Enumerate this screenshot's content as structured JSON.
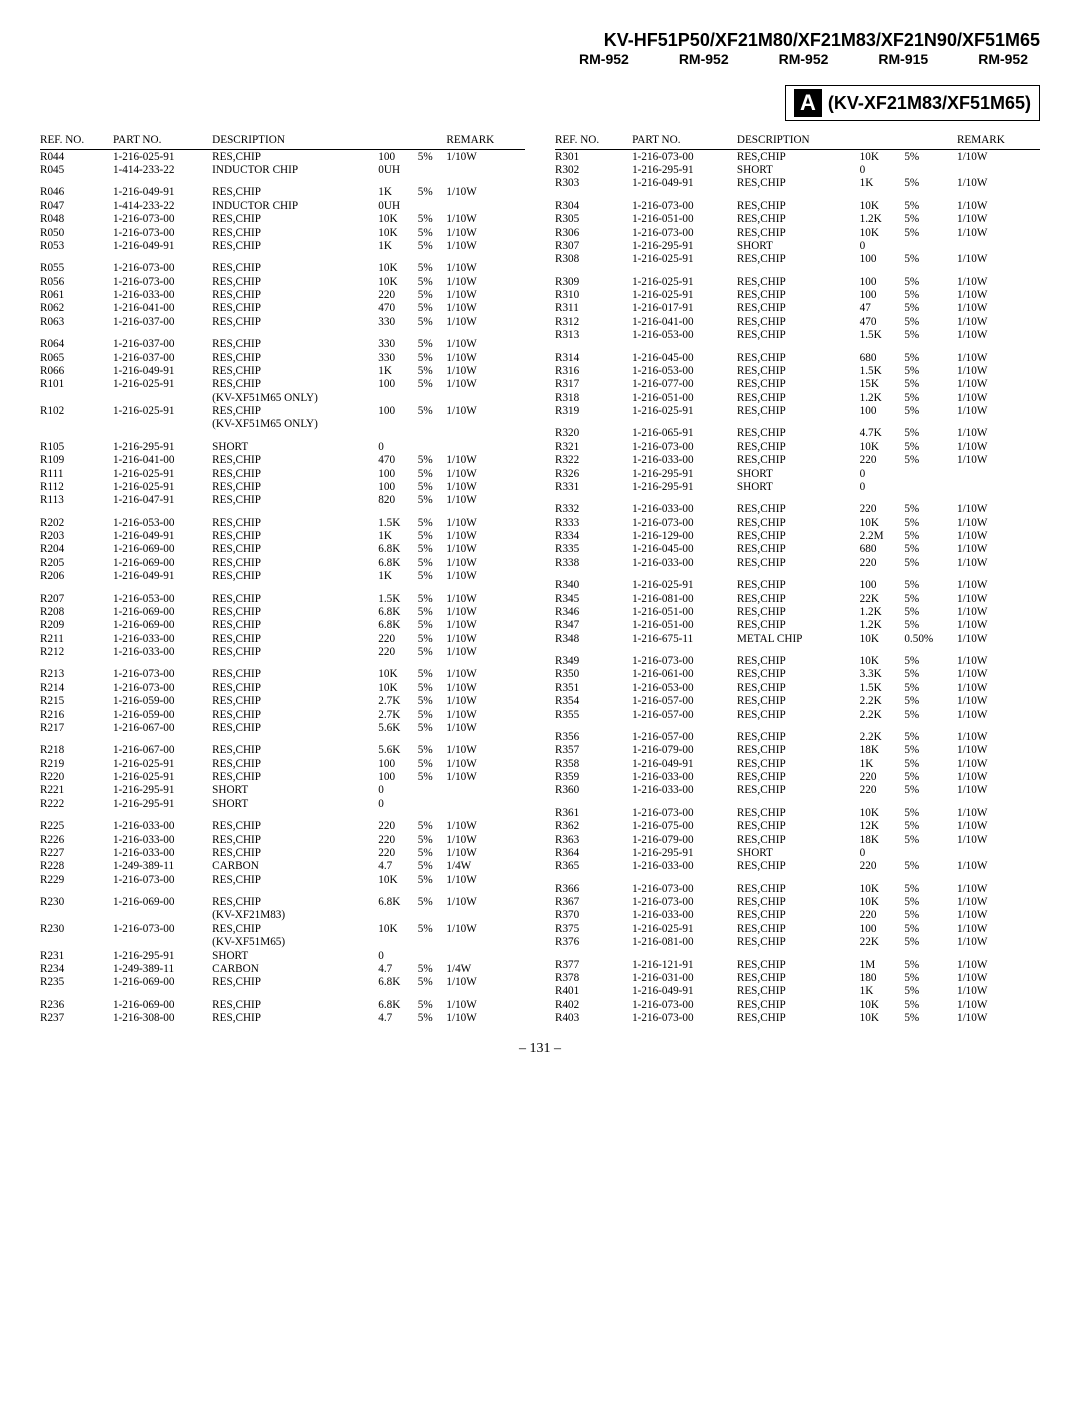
{
  "header": {
    "title": "KV-HF51P50/XF21M80/XF21M83/XF21N90/XF51M65",
    "rm_labels": [
      "RM-952",
      "RM-952",
      "RM-952",
      "RM-915",
      "RM-952"
    ]
  },
  "badge": {
    "letter": "A",
    "models": "(KV-XF21M83/XF51M65)"
  },
  "columns_header": [
    "REF. NO.",
    "PART NO.",
    "DESCRIPTION",
    "",
    "",
    "REMARK"
  ],
  "page_number": "– 131 –",
  "left": [
    {
      "r": "R044",
      "p": "1-216-025-91",
      "d": "RES,CHIP",
      "v1": "100",
      "v2": "5%",
      "rm": "1/10W"
    },
    {
      "r": "R045",
      "p": "1-414-233-22",
      "d": "INDUCTOR CHIP",
      "v1": "0UH",
      "v2": "",
      "rm": ""
    },
    {
      "gap": true
    },
    {
      "r": "R046",
      "p": "1-216-049-91",
      "d": "RES,CHIP",
      "v1": "1K",
      "v2": "5%",
      "rm": "1/10W"
    },
    {
      "r": "R047",
      "p": "1-414-233-22",
      "d": "INDUCTOR CHIP",
      "v1": "0UH",
      "v2": "",
      "rm": ""
    },
    {
      "r": "R048",
      "p": "1-216-073-00",
      "d": "RES,CHIP",
      "v1": "10K",
      "v2": "5%",
      "rm": "1/10W"
    },
    {
      "r": "R050",
      "p": "1-216-073-00",
      "d": "RES,CHIP",
      "v1": "10K",
      "v2": "5%",
      "rm": "1/10W"
    },
    {
      "r": "R053",
      "p": "1-216-049-91",
      "d": "RES,CHIP",
      "v1": "1K",
      "v2": "5%",
      "rm": "1/10W"
    },
    {
      "gap": true
    },
    {
      "r": "R055",
      "p": "1-216-073-00",
      "d": "RES,CHIP",
      "v1": "10K",
      "v2": "5%",
      "rm": "1/10W"
    },
    {
      "r": "R056",
      "p": "1-216-073-00",
      "d": "RES,CHIP",
      "v1": "10K",
      "v2": "5%",
      "rm": "1/10W"
    },
    {
      "r": "R061",
      "p": "1-216-033-00",
      "d": "RES,CHIP",
      "v1": "220",
      "v2": "5%",
      "rm": "1/10W"
    },
    {
      "r": "R062",
      "p": "1-216-041-00",
      "d": "RES,CHIP",
      "v1": "470",
      "v2": "5%",
      "rm": "1/10W"
    },
    {
      "r": "R063",
      "p": "1-216-037-00",
      "d": "RES,CHIP",
      "v1": "330",
      "v2": "5%",
      "rm": "1/10W"
    },
    {
      "gap": true
    },
    {
      "r": "R064",
      "p": "1-216-037-00",
      "d": "RES,CHIP",
      "v1": "330",
      "v2": "5%",
      "rm": "1/10W"
    },
    {
      "r": "R065",
      "p": "1-216-037-00",
      "d": "RES,CHIP",
      "v1": "330",
      "v2": "5%",
      "rm": "1/10W"
    },
    {
      "r": "R066",
      "p": "1-216-049-91",
      "d": "RES,CHIP",
      "v1": "1K",
      "v2": "5%",
      "rm": "1/10W"
    },
    {
      "r": "R101",
      "p": "1-216-025-91",
      "d": "RES,CHIP",
      "v1": "100",
      "v2": "5%",
      "rm": "1/10W"
    },
    {
      "r": "",
      "p": "",
      "d": "(KV-XF51M65 ONLY)",
      "v1": "",
      "v2": "",
      "rm": ""
    },
    {
      "r": "R102",
      "p": "1-216-025-91",
      "d": "RES,CHIP",
      "v1": "100",
      "v2": "5%",
      "rm": "1/10W"
    },
    {
      "r": "",
      "p": "",
      "d": "(KV-XF51M65 ONLY)",
      "v1": "",
      "v2": "",
      "rm": ""
    },
    {
      "gap": true
    },
    {
      "r": "R105",
      "p": "1-216-295-91",
      "d": "SHORT",
      "v1": "0",
      "v2": "",
      "rm": ""
    },
    {
      "r": "R109",
      "p": "1-216-041-00",
      "d": "RES,CHIP",
      "v1": "470",
      "v2": "5%",
      "rm": "1/10W"
    },
    {
      "r": "R111",
      "p": "1-216-025-91",
      "d": "RES,CHIP",
      "v1": "100",
      "v2": "5%",
      "rm": "1/10W"
    },
    {
      "r": "R112",
      "p": "1-216-025-91",
      "d": "RES,CHIP",
      "v1": "100",
      "v2": "5%",
      "rm": "1/10W"
    },
    {
      "r": "R113",
      "p": "1-216-047-91",
      "d": "RES,CHIP",
      "v1": "820",
      "v2": "5%",
      "rm": "1/10W"
    },
    {
      "gap": true
    },
    {
      "r": "R202",
      "p": "1-216-053-00",
      "d": "RES,CHIP",
      "v1": "1.5K",
      "v2": "5%",
      "rm": "1/10W"
    },
    {
      "r": "R203",
      "p": "1-216-049-91",
      "d": "RES,CHIP",
      "v1": "1K",
      "v2": "5%",
      "rm": "1/10W"
    },
    {
      "r": "R204",
      "p": "1-216-069-00",
      "d": "RES,CHIP",
      "v1": "6.8K",
      "v2": "5%",
      "rm": "1/10W"
    },
    {
      "r": "R205",
      "p": "1-216-069-00",
      "d": "RES,CHIP",
      "v1": "6.8K",
      "v2": "5%",
      "rm": "1/10W"
    },
    {
      "r": "R206",
      "p": "1-216-049-91",
      "d": "RES,CHIP",
      "v1": "1K",
      "v2": "5%",
      "rm": "1/10W"
    },
    {
      "gap": true
    },
    {
      "r": "R207",
      "p": "1-216-053-00",
      "d": "RES,CHIP",
      "v1": "1.5K",
      "v2": "5%",
      "rm": "1/10W"
    },
    {
      "r": "R208",
      "p": "1-216-069-00",
      "d": "RES,CHIP",
      "v1": "6.8K",
      "v2": "5%",
      "rm": "1/10W"
    },
    {
      "r": "R209",
      "p": "1-216-069-00",
      "d": "RES,CHIP",
      "v1": "6.8K",
      "v2": "5%",
      "rm": "1/10W"
    },
    {
      "r": "R211",
      "p": "1-216-033-00",
      "d": "RES,CHIP",
      "v1": "220",
      "v2": "5%",
      "rm": "1/10W"
    },
    {
      "r": "R212",
      "p": "1-216-033-00",
      "d": "RES,CHIP",
      "v1": "220",
      "v2": "5%",
      "rm": "1/10W"
    },
    {
      "gap": true
    },
    {
      "r": "R213",
      "p": "1-216-073-00",
      "d": "RES,CHIP",
      "v1": "10K",
      "v2": "5%",
      "rm": "1/10W"
    },
    {
      "r": "R214",
      "p": "1-216-073-00",
      "d": "RES,CHIP",
      "v1": "10K",
      "v2": "5%",
      "rm": "1/10W"
    },
    {
      "r": "R215",
      "p": "1-216-059-00",
      "d": "RES,CHIP",
      "v1": "2.7K",
      "v2": "5%",
      "rm": "1/10W"
    },
    {
      "r": "R216",
      "p": "1-216-059-00",
      "d": "RES,CHIP",
      "v1": "2.7K",
      "v2": "5%",
      "rm": "1/10W"
    },
    {
      "r": "R217",
      "p": "1-216-067-00",
      "d": "RES,CHIP",
      "v1": "5.6K",
      "v2": "5%",
      "rm": "1/10W"
    },
    {
      "gap": true
    },
    {
      "r": "R218",
      "p": "1-216-067-00",
      "d": "RES,CHIP",
      "v1": "5.6K",
      "v2": "5%",
      "rm": "1/10W"
    },
    {
      "r": "R219",
      "p": "1-216-025-91",
      "d": "RES,CHIP",
      "v1": "100",
      "v2": "5%",
      "rm": "1/10W"
    },
    {
      "r": "R220",
      "p": "1-216-025-91",
      "d": "RES,CHIP",
      "v1": "100",
      "v2": "5%",
      "rm": "1/10W"
    },
    {
      "r": "R221",
      "p": "1-216-295-91",
      "d": "SHORT",
      "v1": "0",
      "v2": "",
      "rm": ""
    },
    {
      "r": "R222",
      "p": "1-216-295-91",
      "d": "SHORT",
      "v1": "0",
      "v2": "",
      "rm": ""
    },
    {
      "gap": true
    },
    {
      "r": "R225",
      "p": "1-216-033-00",
      "d": "RES,CHIP",
      "v1": "220",
      "v2": "5%",
      "rm": "1/10W"
    },
    {
      "r": "R226",
      "p": "1-216-033-00",
      "d": "RES,CHIP",
      "v1": "220",
      "v2": "5%",
      "rm": "1/10W"
    },
    {
      "r": "R227",
      "p": "1-216-033-00",
      "d": "RES,CHIP",
      "v1": "220",
      "v2": "5%",
      "rm": "1/10W"
    },
    {
      "r": "R228",
      "p": "1-249-389-11",
      "d": "CARBON",
      "v1": "4.7",
      "v2": "5%",
      "rm": "1/4W"
    },
    {
      "r": "R229",
      "p": "1-216-073-00",
      "d": "RES,CHIP",
      "v1": "10K",
      "v2": "5%",
      "rm": "1/10W"
    },
    {
      "gap": true
    },
    {
      "r": "R230",
      "p": "1-216-069-00",
      "d": "RES,CHIP",
      "v1": "6.8K",
      "v2": "5%",
      "rm": "1/10W"
    },
    {
      "r": "",
      "p": "",
      "d": "(KV-XF21M83)",
      "v1": "",
      "v2": "",
      "rm": ""
    },
    {
      "r": "R230",
      "p": "1-216-073-00",
      "d": "RES,CHIP",
      "v1": "10K",
      "v2": "5%",
      "rm": "1/10W"
    },
    {
      "r": "",
      "p": "",
      "d": "(KV-XF51M65)",
      "v1": "",
      "v2": "",
      "rm": ""
    },
    {
      "r": "R231",
      "p": "1-216-295-91",
      "d": "SHORT",
      "v1": "0",
      "v2": "",
      "rm": ""
    },
    {
      "r": "R234",
      "p": "1-249-389-11",
      "d": "CARBON",
      "v1": "4.7",
      "v2": "5%",
      "rm": "1/4W"
    },
    {
      "r": "R235",
      "p": "1-216-069-00",
      "d": "RES,CHIP",
      "v1": "6.8K",
      "v2": "5%",
      "rm": "1/10W"
    },
    {
      "gap": true
    },
    {
      "r": "R236",
      "p": "1-216-069-00",
      "d": "RES,CHIP",
      "v1": "6.8K",
      "v2": "5%",
      "rm": "1/10W"
    },
    {
      "r": "R237",
      "p": "1-216-308-00",
      "d": "RES,CHIP",
      "v1": "4.7",
      "v2": "5%",
      "rm": "1/10W"
    }
  ],
  "right": [
    {
      "r": "R301",
      "p": "1-216-073-00",
      "d": "RES,CHIP",
      "v1": "10K",
      "v2": "5%",
      "rm": "1/10W"
    },
    {
      "r": "R302",
      "p": "1-216-295-91",
      "d": "SHORT",
      "v1": "0",
      "v2": "",
      "rm": ""
    },
    {
      "r": "R303",
      "p": "1-216-049-91",
      "d": "RES,CHIP",
      "v1": "1K",
      "v2": "5%",
      "rm": "1/10W"
    },
    {
      "gap": true
    },
    {
      "r": "R304",
      "p": "1-216-073-00",
      "d": "RES,CHIP",
      "v1": "10K",
      "v2": "5%",
      "rm": "1/10W"
    },
    {
      "r": "R305",
      "p": "1-216-051-00",
      "d": "RES,CHIP",
      "v1": "1.2K",
      "v2": "5%",
      "rm": "1/10W"
    },
    {
      "r": "R306",
      "p": "1-216-073-00",
      "d": "RES,CHIP",
      "v1": "10K",
      "v2": "5%",
      "rm": "1/10W"
    },
    {
      "r": "R307",
      "p": "1-216-295-91",
      "d": "SHORT",
      "v1": "0",
      "v2": "",
      "rm": ""
    },
    {
      "r": "R308",
      "p": "1-216-025-91",
      "d": "RES,CHIP",
      "v1": "100",
      "v2": "5%",
      "rm": "1/10W"
    },
    {
      "gap": true
    },
    {
      "r": "R309",
      "p": "1-216-025-91",
      "d": "RES,CHIP",
      "v1": "100",
      "v2": "5%",
      "rm": "1/10W"
    },
    {
      "r": "R310",
      "p": "1-216-025-91",
      "d": "RES,CHIP",
      "v1": "100",
      "v2": "5%",
      "rm": "1/10W"
    },
    {
      "r": "R311",
      "p": "1-216-017-91",
      "d": "RES,CHIP",
      "v1": "47",
      "v2": "5%",
      "rm": "1/10W"
    },
    {
      "r": "R312",
      "p": "1-216-041-00",
      "d": "RES,CHIP",
      "v1": "470",
      "v2": "5%",
      "rm": "1/10W"
    },
    {
      "r": "R313",
      "p": "1-216-053-00",
      "d": "RES,CHIP",
      "v1": "1.5K",
      "v2": "5%",
      "rm": "1/10W"
    },
    {
      "gap": true
    },
    {
      "r": "R314",
      "p": "1-216-045-00",
      "d": "RES,CHIP",
      "v1": "680",
      "v2": "5%",
      "rm": "1/10W"
    },
    {
      "r": "R316",
      "p": "1-216-053-00",
      "d": "RES,CHIP",
      "v1": "1.5K",
      "v2": "5%",
      "rm": "1/10W"
    },
    {
      "r": "R317",
      "p": "1-216-077-00",
      "d": "RES,CHIP",
      "v1": "15K",
      "v2": "5%",
      "rm": "1/10W"
    },
    {
      "r": "R318",
      "p": "1-216-051-00",
      "d": "RES,CHIP",
      "v1": "1.2K",
      "v2": "5%",
      "rm": "1/10W"
    },
    {
      "r": "R319",
      "p": "1-216-025-91",
      "d": "RES,CHIP",
      "v1": "100",
      "v2": "5%",
      "rm": "1/10W"
    },
    {
      "gap": true
    },
    {
      "r": "R320",
      "p": "1-216-065-91",
      "d": "RES,CHIP",
      "v1": "4.7K",
      "v2": "5%",
      "rm": "1/10W"
    },
    {
      "r": "R321",
      "p": "1-216-073-00",
      "d": "RES,CHIP",
      "v1": "10K",
      "v2": "5%",
      "rm": "1/10W"
    },
    {
      "r": "R322",
      "p": "1-216-033-00",
      "d": "RES,CHIP",
      "v1": "220",
      "v2": "5%",
      "rm": "1/10W"
    },
    {
      "r": "R326",
      "p": "1-216-295-91",
      "d": "SHORT",
      "v1": "0",
      "v2": "",
      "rm": ""
    },
    {
      "r": "R331",
      "p": "1-216-295-91",
      "d": "SHORT",
      "v1": "0",
      "v2": "",
      "rm": ""
    },
    {
      "gap": true
    },
    {
      "r": "R332",
      "p": "1-216-033-00",
      "d": "RES,CHIP",
      "v1": "220",
      "v2": "5%",
      "rm": "1/10W"
    },
    {
      "r": "R333",
      "p": "1-216-073-00",
      "d": "RES,CHIP",
      "v1": "10K",
      "v2": "5%",
      "rm": "1/10W"
    },
    {
      "r": "R334",
      "p": "1-216-129-00",
      "d": "RES,CHIP",
      "v1": "2.2M",
      "v2": "5%",
      "rm": "1/10W"
    },
    {
      "r": "R335",
      "p": "1-216-045-00",
      "d": "RES,CHIP",
      "v1": "680",
      "v2": "5%",
      "rm": "1/10W"
    },
    {
      "r": "R338",
      "p": "1-216-033-00",
      "d": "RES,CHIP",
      "v1": "220",
      "v2": "5%",
      "rm": "1/10W"
    },
    {
      "gap": true
    },
    {
      "r": "R340",
      "p": "1-216-025-91",
      "d": "RES,CHIP",
      "v1": "100",
      "v2": "5%",
      "rm": "1/10W"
    },
    {
      "r": "R345",
      "p": "1-216-081-00",
      "d": "RES,CHIP",
      "v1": "22K",
      "v2": "5%",
      "rm": "1/10W"
    },
    {
      "r": "R346",
      "p": "1-216-051-00",
      "d": "RES,CHIP",
      "v1": "1.2K",
      "v2": "5%",
      "rm": "1/10W"
    },
    {
      "r": "R347",
      "p": "1-216-051-00",
      "d": "RES,CHIP",
      "v1": "1.2K",
      "v2": "5%",
      "rm": "1/10W"
    },
    {
      "r": "R348",
      "p": "1-216-675-11",
      "d": "METAL CHIP",
      "v1": "10K",
      "v2": "0.50%",
      "rm": "1/10W"
    },
    {
      "gap": true
    },
    {
      "r": "R349",
      "p": "1-216-073-00",
      "d": "RES,CHIP",
      "v1": "10K",
      "v2": "5%",
      "rm": "1/10W"
    },
    {
      "r": "R350",
      "p": "1-216-061-00",
      "d": "RES,CHIP",
      "v1": "3.3K",
      "v2": "5%",
      "rm": "1/10W"
    },
    {
      "r": "R351",
      "p": "1-216-053-00",
      "d": "RES,CHIP",
      "v1": "1.5K",
      "v2": "5%",
      "rm": "1/10W"
    },
    {
      "r": "R354",
      "p": "1-216-057-00",
      "d": "RES,CHIP",
      "v1": "2.2K",
      "v2": "5%",
      "rm": "1/10W"
    },
    {
      "r": "R355",
      "p": "1-216-057-00",
      "d": "RES,CHIP",
      "v1": "2.2K",
      "v2": "5%",
      "rm": "1/10W"
    },
    {
      "gap": true
    },
    {
      "r": "R356",
      "p": "1-216-057-00",
      "d": "RES,CHIP",
      "v1": "2.2K",
      "v2": "5%",
      "rm": "1/10W"
    },
    {
      "r": "R357",
      "p": "1-216-079-00",
      "d": "RES,CHIP",
      "v1": "18K",
      "v2": "5%",
      "rm": "1/10W"
    },
    {
      "r": "R358",
      "p": "1-216-049-91",
      "d": "RES,CHIP",
      "v1": "1K",
      "v2": "5%",
      "rm": "1/10W"
    },
    {
      "r": "R359",
      "p": "1-216-033-00",
      "d": "RES,CHIP",
      "v1": "220",
      "v2": "5%",
      "rm": "1/10W"
    },
    {
      "r": "R360",
      "p": "1-216-033-00",
      "d": "RES,CHIP",
      "v1": "220",
      "v2": "5%",
      "rm": "1/10W"
    },
    {
      "gap": true
    },
    {
      "r": "R361",
      "p": "1-216-073-00",
      "d": "RES,CHIP",
      "v1": "10K",
      "v2": "5%",
      "rm": "1/10W"
    },
    {
      "r": "R362",
      "p": "1-216-075-00",
      "d": "RES,CHIP",
      "v1": "12K",
      "v2": "5%",
      "rm": "1/10W"
    },
    {
      "r": "R363",
      "p": "1-216-079-00",
      "d": "RES,CHIP",
      "v1": "18K",
      "v2": "5%",
      "rm": "1/10W"
    },
    {
      "r": "R364",
      "p": "1-216-295-91",
      "d": "SHORT",
      "v1": "0",
      "v2": "",
      "rm": ""
    },
    {
      "r": "R365",
      "p": "1-216-033-00",
      "d": "RES,CHIP",
      "v1": "220",
      "v2": "5%",
      "rm": "1/10W"
    },
    {
      "gap": true
    },
    {
      "r": "R366",
      "p": "1-216-073-00",
      "d": "RES,CHIP",
      "v1": "10K",
      "v2": "5%",
      "rm": "1/10W"
    },
    {
      "r": "R367",
      "p": "1-216-073-00",
      "d": "RES,CHIP",
      "v1": "10K",
      "v2": "5%",
      "rm": "1/10W"
    },
    {
      "r": "R370",
      "p": "1-216-033-00",
      "d": "RES,CHIP",
      "v1": "220",
      "v2": "5%",
      "rm": "1/10W"
    },
    {
      "r": "R375",
      "p": "1-216-025-91",
      "d": "RES,CHIP",
      "v1": "100",
      "v2": "5%",
      "rm": "1/10W"
    },
    {
      "r": "R376",
      "p": "1-216-081-00",
      "d": "RES,CHIP",
      "v1": "22K",
      "v2": "5%",
      "rm": "1/10W"
    },
    {
      "gap": true
    },
    {
      "r": "R377",
      "p": "1-216-121-91",
      "d": "RES,CHIP",
      "v1": "1M",
      "v2": "5%",
      "rm": "1/10W"
    },
    {
      "r": "R378",
      "p": "1-216-031-00",
      "d": "RES,CHIP",
      "v1": "180",
      "v2": "5%",
      "rm": "1/10W"
    },
    {
      "r": "R401",
      "p": "1-216-049-91",
      "d": "RES,CHIP",
      "v1": "1K",
      "v2": "5%",
      "rm": "1/10W"
    },
    {
      "r": "R402",
      "p": "1-216-073-00",
      "d": "RES,CHIP",
      "v1": "10K",
      "v2": "5%",
      "rm": "1/10W"
    },
    {
      "r": "R403",
      "p": "1-216-073-00",
      "d": "RES,CHIP",
      "v1": "10K",
      "v2": "5%",
      "rm": "1/10W"
    }
  ]
}
